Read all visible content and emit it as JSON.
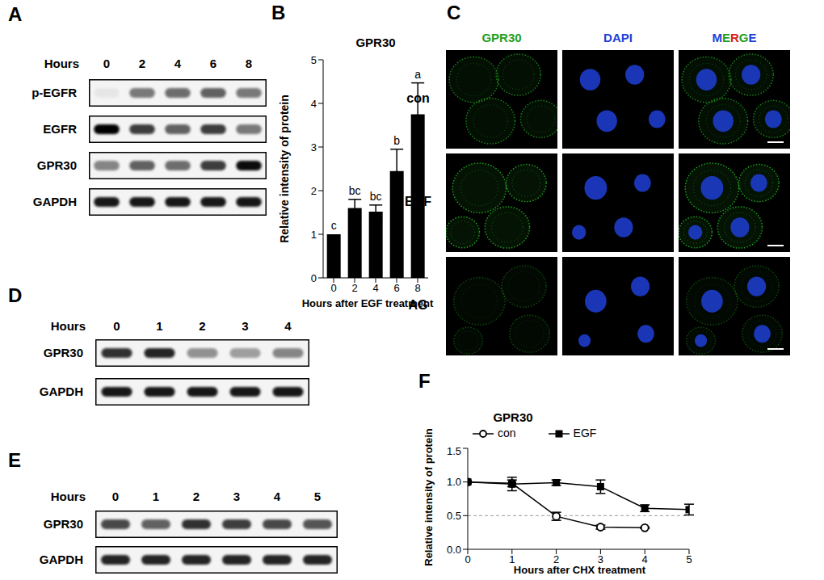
{
  "figure": {
    "blots": [
      {
        "panel_label": "A",
        "header": "Hours",
        "lanes": [
          "0",
          "2",
          "4",
          "6",
          "8"
        ],
        "rows": [
          {
            "label": "p-EGFR",
            "bands": [
              0.05,
              0.5,
              0.55,
              0.6,
              0.5
            ]
          },
          {
            "label": "EGFR",
            "bands": [
              1,
              0.75,
              0.6,
              0.75,
              0.5
            ]
          },
          {
            "label": "GPR30",
            "bands": [
              0.45,
              0.6,
              0.55,
              0.75,
              0.95
            ]
          },
          {
            "label": "GAPDH",
            "bands": [
              0.9,
              0.9,
              0.9,
              0.9,
              0.9
            ]
          }
        ]
      },
      {
        "panel_label": "D",
        "header": "Hours",
        "lanes": [
          "0",
          "1",
          "2",
          "3",
          "4"
        ],
        "rows": [
          {
            "label": "GPR30",
            "bands": [
              0.8,
              0.85,
              0.4,
              0.35,
              0.45
            ]
          },
          {
            "label": "GAPDH",
            "bands": [
              0.9,
              0.9,
              0.9,
              0.9,
              0.9
            ]
          }
        ]
      },
      {
        "panel_label": "E",
        "header": "Hours",
        "lanes": [
          "0",
          "1",
          "2",
          "3",
          "4",
          "5"
        ],
        "rows": [
          {
            "label": "GPR30",
            "bands": [
              0.7,
              0.6,
              0.8,
              0.75,
              0.7,
              0.65
            ]
          },
          {
            "label": "GAPDH",
            "bands": [
              0.85,
              0.85,
              0.85,
              0.85,
              0.85,
              0.85
            ]
          }
        ]
      }
    ],
    "microscopy": {
      "panel_label": "C",
      "columns": [
        {
          "label": "GPR30",
          "color": "#1e9e1e"
        },
        {
          "label": "DAPI",
          "color": "#1f3fd6"
        },
        {
          "label": "MERGE",
          "colors": [
            "#1f3fd6",
            "#1e9e1e",
            "#d62020",
            "#1e9e1e",
            "#1f3fd6"
          ]
        }
      ],
      "rows": [
        {
          "label": "con",
          "signal": 0.8
        },
        {
          "label": "EGF",
          "signal": 1
        },
        {
          "label": "AG",
          "signal": 0.45
        }
      ]
    }
  },
  "chart_data": [
    {
      "panel_label": "B",
      "type": "bar",
      "title": "GPR30",
      "x_label": "Hours after EGF treatment",
      "y_label": "Relative intensity of protein",
      "categories": [
        "0",
        "2",
        "4",
        "6",
        "8"
      ],
      "values": [
        1,
        1.6,
        1.52,
        2.45,
        3.75
      ],
      "error": [
        0,
        0.2,
        0.15,
        0.5,
        0.72
      ],
      "annotations": [
        "c",
        "bc",
        "bc",
        "b",
        "a"
      ],
      "color": "#000000",
      "ylim": [
        0,
        5
      ],
      "yticks": [
        0,
        1,
        2,
        3,
        4,
        5
      ]
    },
    {
      "panel_label": "F",
      "type": "line",
      "title": "GPR30",
      "x_label": "Hours after CHX treatment",
      "y_label": "Relative intensity of protein",
      "x": [
        0,
        1,
        2,
        3,
        4,
        5
      ],
      "series": [
        {
          "name": "con",
          "color": "#000000",
          "marker": "circle",
          "values": [
            1,
            0.98,
            0.49,
            0.33,
            0.32,
            null
          ],
          "error": [
            0,
            0.05,
            0.06,
            0.03,
            0.01,
            null
          ]
        },
        {
          "name": "EGF",
          "color": "#000000",
          "marker": "square",
          "values": [
            1,
            0.97,
            0.99,
            0.93,
            0.61,
            0.59
          ],
          "error": [
            0,
            0.1,
            0.04,
            0.1,
            0.05,
            0.08
          ]
        }
      ],
      "xlim": [
        0,
        5
      ],
      "xticks": [
        0,
        1,
        2,
        3,
        4,
        5
      ],
      "ylim": [
        0,
        1.5
      ],
      "yticks": [
        {
          "value": 0,
          "label": "0.0"
        },
        {
          "value": 0.5,
          "label": "0.5"
        },
        {
          "value": 1,
          "label": "1.0"
        },
        {
          "value": 1.5,
          "label": "1.5"
        }
      ],
      "reference_line": {
        "y": 0.5,
        "line_style": "dashed",
        "color": "#999999"
      },
      "legend": "top"
    }
  ]
}
